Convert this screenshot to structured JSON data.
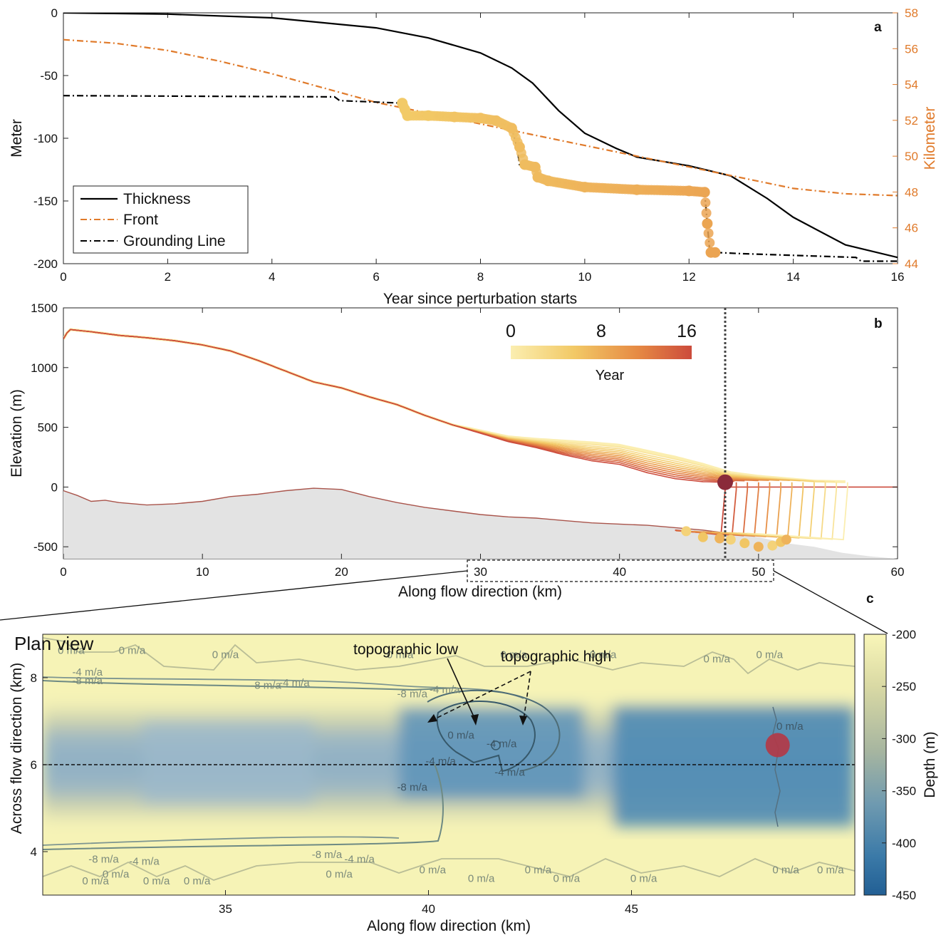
{
  "chart_data": [
    {
      "panel": "a",
      "type": "line",
      "xlabel": "Year since perturbation starts",
      "ylabel": "Meter",
      "ylabel_right": "Kilometer",
      "xlim": [
        0,
        16
      ],
      "ylim": [
        -200,
        0
      ],
      "ylim_right": [
        44,
        58
      ],
      "x_ticks": [
        "0",
        "2",
        "4",
        "6",
        "8",
        "10",
        "12",
        "14",
        "16"
      ],
      "y_ticks": [
        "0",
        "-50",
        "-100",
        "-150",
        "-200"
      ],
      "y_ticks_right": [
        "58",
        "56",
        "54",
        "52",
        "50",
        "48",
        "46",
        "44"
      ],
      "legend_position": "bottom-left",
      "series": [
        {
          "name": "Thickness",
          "axis": "left",
          "color": "#000000",
          "style": "solid",
          "x": [
            0,
            2,
            4,
            6,
            7,
            8,
            8.6,
            9,
            9.5,
            10,
            10.6,
            11,
            12,
            12.8,
            13.5,
            14,
            15,
            16
          ],
          "y": [
            0,
            -1,
            -4,
            -12,
            -20,
            -32,
            -44,
            -56,
            -78,
            -96,
            -108,
            -115,
            -122,
            -130,
            -148,
            -163,
            -185,
            -195
          ]
        },
        {
          "name": "Front",
          "axis": "right",
          "color": "#e07a2a",
          "style": "dashdot",
          "x": [
            0,
            1,
            2,
            3,
            4,
            5,
            6,
            7,
            8,
            9,
            10,
            11,
            12,
            13,
            14,
            15,
            16
          ],
          "y": [
            56.5,
            56.3,
            55.9,
            55.3,
            54.6,
            53.8,
            53.0,
            52.4,
            51.8,
            51.2,
            50.6,
            50.0,
            49.4,
            48.8,
            48.2,
            47.9,
            47.8
          ]
        },
        {
          "name": "Grounding Line",
          "axis": "left",
          "color": "#000000",
          "style": "dashdot",
          "x": [
            0,
            5.2,
            5.3,
            6.5,
            6.5,
            6.6,
            7.5,
            7.9,
            8.3,
            8.6,
            8.7,
            8.75,
            8.85,
            9.05,
            9.1,
            9.3,
            10.5,
            11.5,
            12.3,
            12.35,
            12.4,
            12.5,
            13.0,
            15.2,
            15.3,
            16
          ],
          "y": [
            -66,
            -67,
            -70,
            -72,
            -72,
            -82,
            -83,
            -84,
            -86,
            -92,
            -107,
            -121,
            -121,
            -123,
            -131,
            -134,
            -140,
            -142,
            -143,
            -168,
            -191,
            -191,
            -192,
            -195,
            -198,
            -198
          ]
        }
      ],
      "highlight_points": {
        "x": [
          6.5,
          6.55,
          6.6,
          7.0,
          7.5,
          8.0,
          8.3,
          8.6,
          8.75,
          8.85,
          9.05,
          9.1,
          9.3,
          10.0,
          11.0,
          12.0,
          12.3,
          12.35,
          12.42,
          12.5
        ],
        "y": [
          -72,
          -77,
          -82,
          -82,
          -83,
          -84,
          -86,
          -92,
          -107,
          -121,
          -123,
          -131,
          -134,
          -139,
          -141,
          -142,
          -143,
          -168,
          -191,
          -191
        ],
        "color_scale": "Year"
      }
    },
    {
      "panel": "b",
      "type": "line",
      "xlabel": "Along flow direction (km)",
      "ylabel": "Elevation (m)",
      "xlim": [
        0,
        60
      ],
      "ylim": [
        -600,
        1500
      ],
      "x_ticks": [
        "0",
        "10",
        "20",
        "30",
        "40",
        "50",
        "60"
      ],
      "y_ticks": [
        "1500",
        "1000",
        "500",
        "0",
        "-500"
      ],
      "colorbar": {
        "label": "Year",
        "min": 0,
        "max": 16,
        "ticks": [
          "0",
          "8",
          "16"
        ],
        "colors": [
          "#fbeeb0",
          "#f2c966",
          "#e68a44",
          "#cc4b3c"
        ]
      },
      "vertical_line_x": 47.6,
      "marker_x": 47.6,
      "marker_y": 40,
      "surface_final": {
        "x": [
          0,
          0.4,
          2,
          4,
          6,
          8,
          10,
          12,
          14,
          16,
          18,
          20,
          22,
          24,
          26,
          28,
          30,
          32,
          34,
          36,
          38,
          40,
          42,
          44,
          46,
          47.6
        ],
        "y": [
          1240,
          1320,
          1300,
          1270,
          1250,
          1225,
          1190,
          1140,
          1060,
          970,
          880,
          830,
          755,
          690,
          600,
          520,
          450,
          380,
          330,
          270,
          220,
          190,
          120,
          70,
          45,
          40
        ]
      },
      "surface_initial": {
        "x": [
          28,
          30,
          32,
          34,
          36,
          38,
          40,
          42,
          44,
          46,
          48,
          50,
          52,
          54,
          56,
          56.6
        ],
        "y": [
          520,
          470,
          420,
          400,
          385,
          370,
          350,
          300,
          250,
          190,
          120,
          90,
          70,
          50,
          45,
          45
        ]
      },
      "bed": {
        "x": [
          0,
          1,
          2,
          3,
          4,
          6,
          8,
          10,
          12,
          14,
          16,
          18,
          20,
          22,
          24,
          26,
          28,
          30,
          32,
          34,
          36,
          38,
          40,
          42,
          44,
          46,
          48,
          50,
          52,
          54,
          56,
          58,
          60
        ],
        "y": [
          -30,
          -70,
          -120,
          -110,
          -130,
          -150,
          -140,
          -120,
          -80,
          -60,
          -30,
          -10,
          -20,
          -80,
          -130,
          -170,
          -200,
          -230,
          -250,
          -260,
          -280,
          -300,
          -310,
          -320,
          -340,
          -360,
          -390,
          -420,
          -470,
          -500,
          -550,
          -580,
          -600
        ]
      },
      "grounding_points": {
        "x": [
          44.8,
          46.0,
          47.2,
          48.0,
          49.0,
          50.0,
          51.0,
          51.6,
          52.0
        ],
        "y": [
          -370,
          -420,
          -430,
          -440,
          -470,
          -500,
          -490,
          -460,
          -440
        ]
      },
      "front_positions_km": [
        47.6,
        48.4,
        49.2,
        50.0,
        50.8,
        51.6,
        52.4,
        53.2,
        54.0,
        54.8,
        55.6,
        56.4
      ]
    },
    {
      "panel": "c",
      "type": "heatmap",
      "title": "Plan view",
      "xlabel": "Along flow direction (km)",
      "ylabel": "Across flow direction (km)",
      "xlim": [
        30.5,
        50.5
      ],
      "ylim": [
        3,
        9
      ],
      "x_ticks": [
        "35",
        "40",
        "45"
      ],
      "y_ticks": [
        "8",
        "6",
        "4"
      ],
      "colorbar": {
        "label": "Depth (m)",
        "min": -450,
        "max": -200,
        "ticks": [
          "-200",
          "-250",
          "-300",
          "-350",
          "-400",
          "-450"
        ],
        "colors": [
          "#f9f6b8",
          "#d9d9a4",
          "#a6b5a0",
          "#6f9ab0",
          "#3b7aa8",
          "#225f94"
        ]
      },
      "dashed_line_y": 6,
      "marker_x": 48.6,
      "marker_y": 6.45,
      "contour_labels": [
        {
          "text": "0 m/a",
          "x": 31.2,
          "y": 8.55
        },
        {
          "text": "0 m/a",
          "x": 32.7,
          "y": 8.55
        },
        {
          "text": "0 m/a",
          "x": 35.0,
          "y": 8.45
        },
        {
          "text": "0 m/a",
          "x": 39.3,
          "y": 8.45
        },
        {
          "text": "0 m/a",
          "x": 42.1,
          "y": 8.45
        },
        {
          "text": "0 m/a",
          "x": 44.3,
          "y": 8.45
        },
        {
          "text": "0 m/a",
          "x": 47.1,
          "y": 8.35
        },
        {
          "text": "0 m/a",
          "x": 48.4,
          "y": 8.45
        },
        {
          "text": "-4 m/a",
          "x": 31.6,
          "y": 8.05
        },
        {
          "text": "-8 m/a",
          "x": 31.6,
          "y": 7.85
        },
        {
          "text": "-8 m/a",
          "x": 36.0,
          "y": 7.75
        },
        {
          "text": "-4 m/a",
          "x": 36.7,
          "y": 7.8
        },
        {
          "text": "-8 m/a",
          "x": 39.6,
          "y": 7.55
        },
        {
          "text": "-4 m/a",
          "x": 40.4,
          "y": 7.65
        },
        {
          "text": "0 m/a",
          "x": 40.8,
          "y": 6.6
        },
        {
          "text": "-4 m/a",
          "x": 41.8,
          "y": 6.4
        },
        {
          "text": "-4 m/a",
          "x": 40.3,
          "y": 6.0
        },
        {
          "text": "-8 m/a",
          "x": 39.6,
          "y": 5.4
        },
        {
          "text": "-4 m/a",
          "x": 42.0,
          "y": 5.75
        },
        {
          "text": "0 m/a",
          "x": 48.9,
          "y": 6.8
        },
        {
          "text": "-8 m/a",
          "x": 32.0,
          "y": 3.75
        },
        {
          "text": "-4 m/a",
          "x": 33.0,
          "y": 3.7
        },
        {
          "text": "-8 m/a",
          "x": 37.5,
          "y": 3.85
        },
        {
          "text": "-4 m/a",
          "x": 38.3,
          "y": 3.75
        },
        {
          "text": "0 m/a",
          "x": 32.3,
          "y": 3.4
        },
        {
          "text": "0 m/a",
          "x": 37.8,
          "y": 3.4
        },
        {
          "text": "0 m/a",
          "x": 40.1,
          "y": 3.5
        },
        {
          "text": "0 m/a",
          "x": 42.7,
          "y": 3.5
        },
        {
          "text": "0 m/a",
          "x": 48.8,
          "y": 3.5
        },
        {
          "text": "0 m/a",
          "x": 49.9,
          "y": 3.5
        },
        {
          "text": "0 m/a",
          "x": 31.8,
          "y": 3.25
        },
        {
          "text": "0 m/a",
          "x": 33.3,
          "y": 3.25
        },
        {
          "text": "0 m/a",
          "x": 34.3,
          "y": 3.25
        },
        {
          "text": "0 m/a",
          "x": 41.3,
          "y": 3.3
        },
        {
          "text": "0 m/a",
          "x": 43.4,
          "y": 3.3
        },
        {
          "text": "0 m/a",
          "x": 45.3,
          "y": 3.3
        }
      ],
      "annotations": [
        {
          "text": "topographic low",
          "x": 39.8,
          "y": 8.6
        },
        {
          "text": "topographic high",
          "x": 43.7,
          "y": 8.45
        }
      ]
    }
  ]
}
